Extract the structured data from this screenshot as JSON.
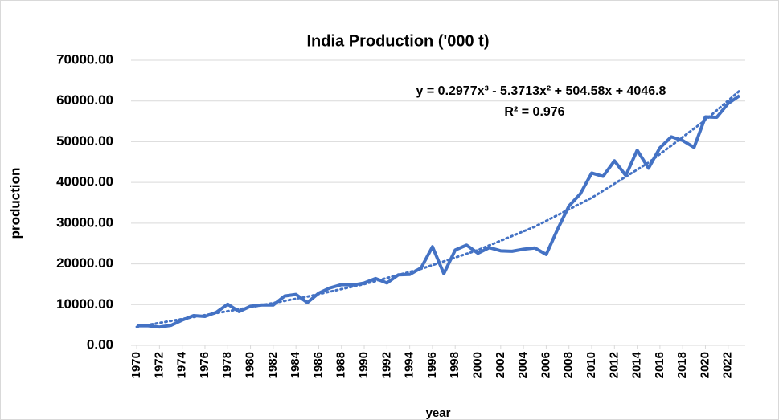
{
  "chart_data": {
    "type": "line",
    "title": "India Production ('000 t)",
    "x_label": "year",
    "y_label": "production",
    "annotations": [
      "y = 0.2977x³ - 5.3713x² + 504.58x + 4046.8",
      "R² = 0.976"
    ],
    "x": [
      1970,
      1971,
      1972,
      1973,
      1974,
      1975,
      1976,
      1977,
      1978,
      1979,
      1980,
      1981,
      1982,
      1983,
      1984,
      1985,
      1986,
      1987,
      1988,
      1989,
      1990,
      1991,
      1992,
      1993,
      1994,
      1995,
      1996,
      1997,
      1998,
      1999,
      2000,
      2001,
      2002,
      2003,
      2004,
      2005,
      2006,
      2007,
      2008,
      2009,
      2010,
      2011,
      2012,
      2013,
      2014,
      2015,
      2016,
      2017,
      2018,
      2019,
      2020,
      2021,
      2022,
      2023
    ],
    "series": [
      {
        "color": "#4472c4",
        "values": [
          4800,
          4800,
          4500,
          4900,
          6200,
          7300,
          7100,
          8100,
          10100,
          8300,
          9600,
          9900,
          9900,
          12100,
          12500,
          10500,
          12800,
          14100,
          14900,
          14800,
          15300,
          16400,
          15300,
          17300,
          17400,
          19000,
          24200,
          17600,
          23400,
          24600,
          22600,
          24000,
          23200,
          23100,
          23600,
          23900,
          22300,
          28500,
          34200,
          37200,
          42300,
          41500,
          45300,
          41700,
          47900,
          43500,
          48500,
          51200,
          50300,
          48600,
          56100,
          56000,
          59400,
          61300
        ]
      }
    ],
    "trendline": {
      "color": "#4472c4",
      "style": "dotted",
      "x": [
        1970,
        1975,
        1980,
        1985,
        1990,
        1995,
        2000,
        2005,
        2010,
        2015,
        2020,
        2023
      ],
      "values": [
        4546,
        6945,
        9344,
        11964,
        15031,
        18767,
        23396,
        29140,
        36223,
        44869,
        55300,
        62508
      ]
    },
    "xlim": [
      1969.5,
      2023.5
    ],
    "xticks": [
      1970,
      1972,
      1974,
      1976,
      1978,
      1980,
      1982,
      1984,
      1986,
      1988,
      1990,
      1992,
      1994,
      1996,
      1998,
      2000,
      2002,
      2004,
      2006,
      2008,
      2010,
      2012,
      2014,
      2016,
      2018,
      2020,
      2022
    ],
    "ylim": [
      0,
      70000
    ],
    "yticks": [
      {
        "value": 0,
        "label": "0.00"
      },
      {
        "value": 10000,
        "label": "10000.00"
      },
      {
        "value": 20000,
        "label": "20000.00"
      },
      {
        "value": 30000,
        "label": "30000.00"
      },
      {
        "value": 40000,
        "label": "40000.00"
      },
      {
        "value": 50000,
        "label": "50000.00"
      },
      {
        "value": 60000,
        "label": "60000.00"
      },
      {
        "value": 70000,
        "label": "70000.00"
      }
    ],
    "grid": true
  }
}
